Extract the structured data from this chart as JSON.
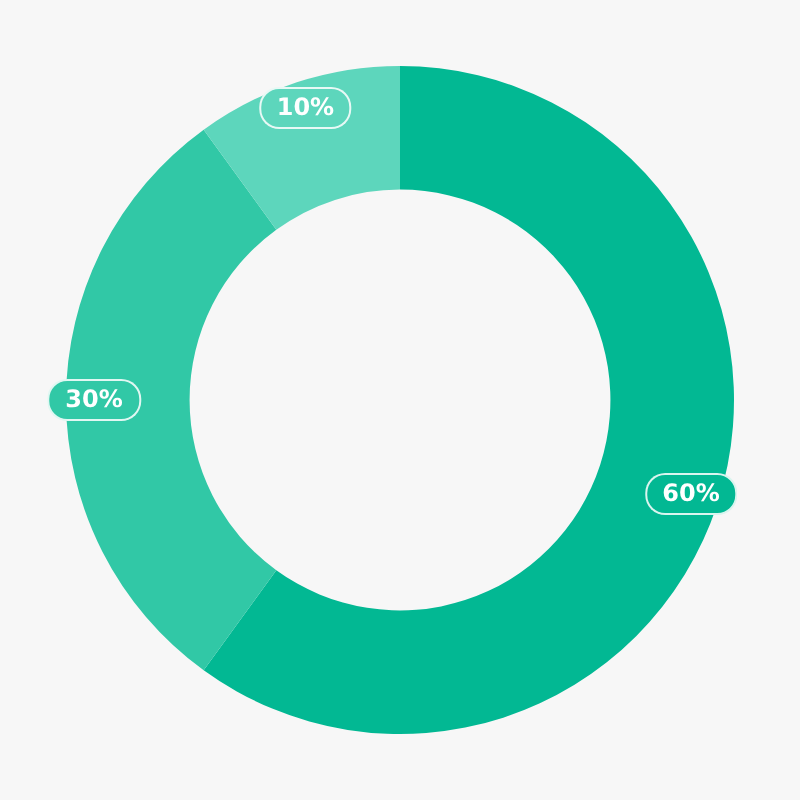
{
  "chart_data": {
    "type": "donut",
    "categories": [
      null,
      null,
      null
    ],
    "values": [
      60,
      30,
      10
    ],
    "colors": [
      "#02b893",
      "#31c8a6",
      "#5dd6bc"
    ],
    "value_labels": [
      "60%",
      "30%",
      "10%"
    ]
  }
}
